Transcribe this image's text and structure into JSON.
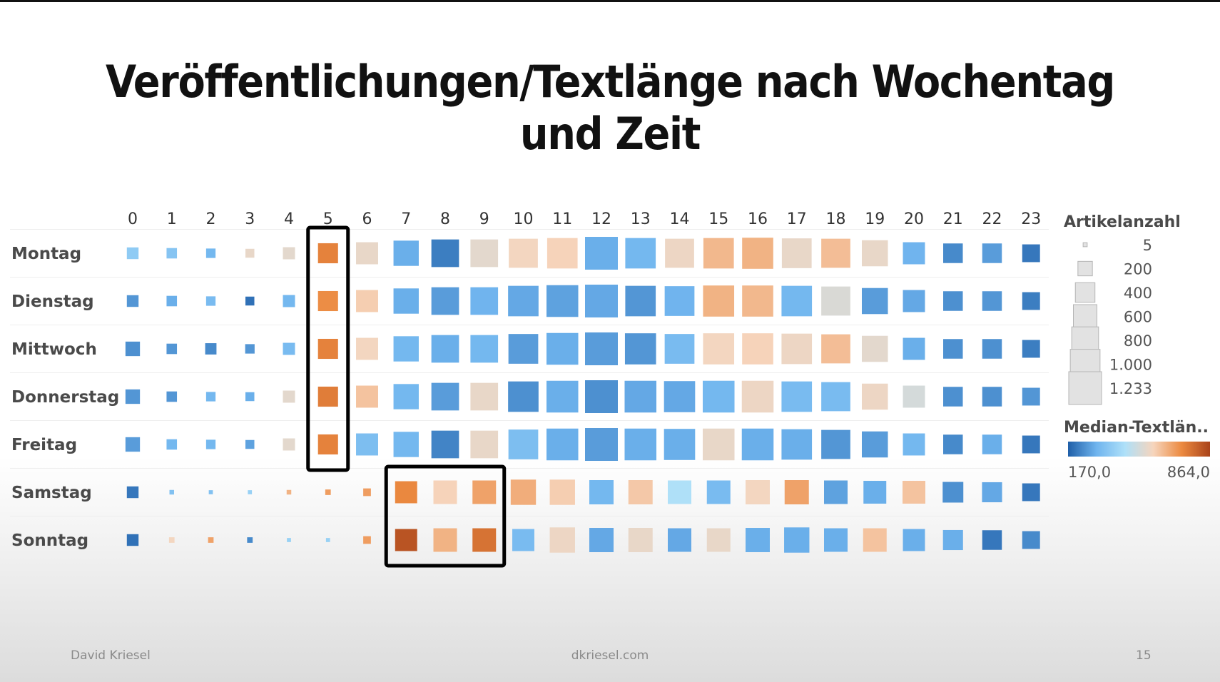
{
  "title": "Veröffentlichungen/Textlänge nach Wochentag und Zeit",
  "footer": {
    "author": "David Kriesel",
    "site": "dkriesel.com",
    "page": "15"
  },
  "chart_data": {
    "type": "heatmap",
    "x_categories": [
      "0",
      "1",
      "2",
      "3",
      "4",
      "5",
      "6",
      "7",
      "8",
      "9",
      "10",
      "11",
      "12",
      "13",
      "14",
      "15",
      "16",
      "17",
      "18",
      "19",
      "20",
      "21",
      "22",
      "23"
    ],
    "y_categories": [
      "Montag",
      "Dienstag",
      "Mittwoch",
      "Donnerstag",
      "Freitag",
      "Samstag",
      "Sonntag"
    ],
    "size_legend": {
      "title": "Artikelanzahl",
      "labels": [
        "5",
        "200",
        "400",
        "600",
        "800",
        "1.000",
        "1.233"
      ],
      "values": [
        5,
        200,
        400,
        600,
        800,
        1000,
        1233
      ]
    },
    "color_legend": {
      "title": "Median-Textlän..",
      "min_label": "170,0",
      "max_label": "864,0",
      "min": 170,
      "max": 864,
      "colors": [
        "#1f5fa8",
        "#6fb4ee",
        "#aee0f9",
        "#f6d5bd",
        "#ec8a40",
        "#a9431a"
      ]
    },
    "article_counts": [
      [
        120,
        90,
        70,
        60,
        130,
        420,
        520,
        700,
        850,
        850,
        950,
        1050,
        1233,
        1050,
        950,
        1050,
        1100,
        1000,
        950,
        750,
        520,
        400,
        400,
        320
      ],
      [
        120,
        90,
        70,
        60,
        130,
        420,
        520,
        700,
        850,
        850,
        1050,
        1150,
        1233,
        1050,
        1000,
        1100,
        1100,
        1050,
        950,
        750,
        520,
        400,
        400,
        320
      ],
      [
        200,
        90,
        110,
        70,
        130,
        420,
        520,
        700,
        850,
        850,
        1000,
        1150,
        1233,
        1100,
        1000,
        1100,
        1100,
        1050,
        950,
        750,
        520,
        400,
        400,
        320
      ],
      [
        200,
        90,
        70,
        60,
        130,
        420,
        520,
        700,
        850,
        850,
        1050,
        1150,
        1233,
        1150,
        1100,
        1150,
        1150,
        1050,
        950,
        750,
        520,
        400,
        400,
        320
      ],
      [
        200,
        90,
        70,
        60,
        130,
        420,
        520,
        700,
        850,
        850,
        1000,
        1150,
        1233,
        1150,
        1100,
        1150,
        1150,
        1050,
        950,
        750,
        520,
        400,
        400,
        320
      ],
      [
        120,
        8,
        5,
        5,
        8,
        15,
        40,
        520,
        600,
        600,
        700,
        700,
        640,
        640,
        600,
        600,
        640,
        640,
        600,
        560,
        560,
        450,
        420,
        320
      ],
      [
        120,
        15,
        15,
        15,
        5,
        5,
        40,
        520,
        600,
        600,
        520,
        700,
        640,
        640,
        600,
        600,
        640,
        700,
        600,
        600,
        520,
        420,
        400,
        320
      ]
    ],
    "median_text_length": [
      [
        380,
        360,
        320,
        560,
        550,
        740,
        560,
        300,
        220,
        550,
        580,
        590,
        300,
        320,
        570,
        640,
        650,
        560,
        630,
        560,
        310,
        240,
        270,
        210
      ],
      [
        260,
        300,
        330,
        200,
        320,
        720,
        600,
        300,
        270,
        310,
        290,
        280,
        290,
        260,
        310,
        650,
        640,
        320,
        530,
        270,
        290,
        250,
        260,
        220
      ],
      [
        250,
        260,
        240,
        260,
        330,
        740,
        580,
        320,
        300,
        320,
        270,
        300,
        270,
        260,
        330,
        580,
        590,
        570,
        630,
        550,
        300,
        250,
        250,
        220
      ],
      [
        260,
        260,
        320,
        300,
        550,
        750,
        620,
        320,
        270,
        560,
        250,
        300,
        250,
        290,
        290,
        320,
        570,
        330,
        330,
        570,
        520,
        250,
        250,
        260
      ],
      [
        270,
        320,
        320,
        280,
        550,
        740,
        340,
        320,
        230,
        560,
        340,
        300,
        270,
        300,
        300,
        560,
        300,
        300,
        260,
        270,
        320,
        240,
        300,
        210
      ],
      [
        210,
        350,
        350,
        400,
        650,
        690,
        690,
        730,
        590,
        680,
        660,
        600,
        320,
        610,
        450,
        330,
        580,
        680,
        280,
        300,
        620,
        250,
        290,
        210
      ],
      [
        200,
        580,
        680,
        240,
        400,
        400,
        690,
        830,
        650,
        770,
        330,
        570,
        290,
        560,
        290,
        560,
        300,
        300,
        300,
        620,
        300,
        300,
        210,
        240
      ]
    ],
    "highlights": [
      {
        "x_from": "5",
        "x_to": "5",
        "y_from": "Montag",
        "y_to": "Freitag"
      },
      {
        "x_from": "7",
        "x_to": "9",
        "y_from": "Samstag",
        "y_to": "Sonntag"
      }
    ]
  }
}
